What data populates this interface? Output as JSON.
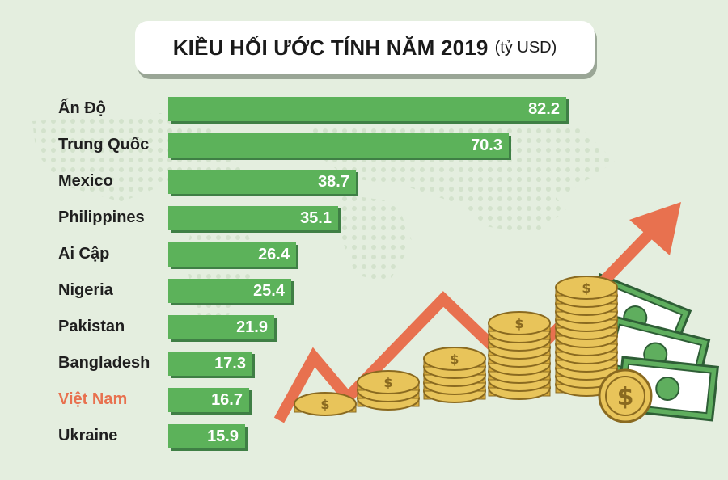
{
  "chart_data": {
    "type": "bar",
    "orientation": "horizontal",
    "title": "KIỀU HỐI ƯỚC TÍNH NĂM 2019",
    "unit": "(tỷ USD)",
    "xlabel": "",
    "ylabel": "",
    "categories": [
      "Ấn Độ",
      "Trung Quốc",
      "Mexico",
      "Philippines",
      "Ai Cập",
      "Nigeria",
      "Pakistan",
      "Bangladesh",
      "Việt Nam",
      "Ukraine"
    ],
    "values": [
      82.2,
      70.3,
      38.7,
      35.1,
      26.4,
      25.4,
      21.9,
      17.3,
      16.7,
      15.9
    ],
    "value_labels": [
      "82.2",
      "70.3",
      "38.7",
      "35.1",
      "26.4",
      "25.4",
      "21.9",
      "17.3",
      "16.7",
      "15.9"
    ],
    "highlight_category": "Việt Nam",
    "xlim": [
      0,
      82.2
    ],
    "grid": false
  },
  "colors": {
    "bar": "#5cb25a",
    "bar_shadow": "#3f7f45",
    "highlight_label": "#e8714f",
    "arrow": "#e8714f",
    "coin": "#e8c45a",
    "banknote": "#5fae5e"
  },
  "icons": [
    "dollar-coin-icon",
    "banknote-icon",
    "trend-arrow-icon"
  ]
}
